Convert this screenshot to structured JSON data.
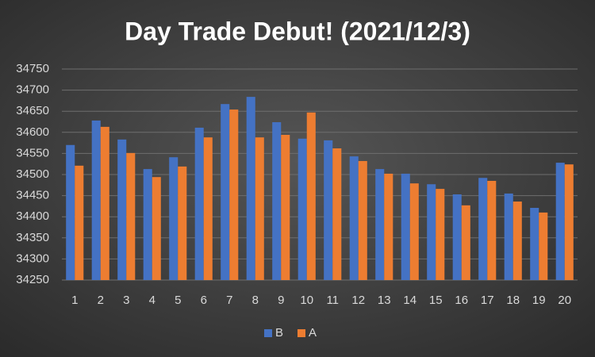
{
  "chart_data": {
    "type": "bar",
    "title": "Day Trade Debut! (2021/12/3)",
    "categories": [
      "1",
      "2",
      "3",
      "4",
      "5",
      "6",
      "7",
      "8",
      "9",
      "10",
      "11",
      "12",
      "13",
      "14",
      "15",
      "16",
      "17",
      "18",
      "19",
      "20"
    ],
    "series": [
      {
        "name": "B",
        "color": "#4472c4",
        "values": [
          34570,
          34628,
          34583,
          34513,
          34541,
          34611,
          34667,
          34684,
          34624,
          34585,
          34581,
          34543,
          34513,
          34502,
          34477,
          34453,
          34492,
          34455,
          34421,
          34528
        ]
      },
      {
        "name": "A",
        "color": "#ed7d31",
        "values": [
          34521,
          34613,
          34551,
          34494,
          34519,
          34588,
          34654,
          34588,
          34594,
          34647,
          34562,
          34532,
          34502,
          34479,
          34466,
          34427,
          34485,
          34436,
          34410,
          34524
        ]
      }
    ],
    "ylim": [
      34250,
      34750
    ],
    "yticks": [
      34250,
      34300,
      34350,
      34400,
      34450,
      34500,
      34550,
      34600,
      34650,
      34700,
      34750
    ],
    "grid": true,
    "legend": "bottom"
  }
}
